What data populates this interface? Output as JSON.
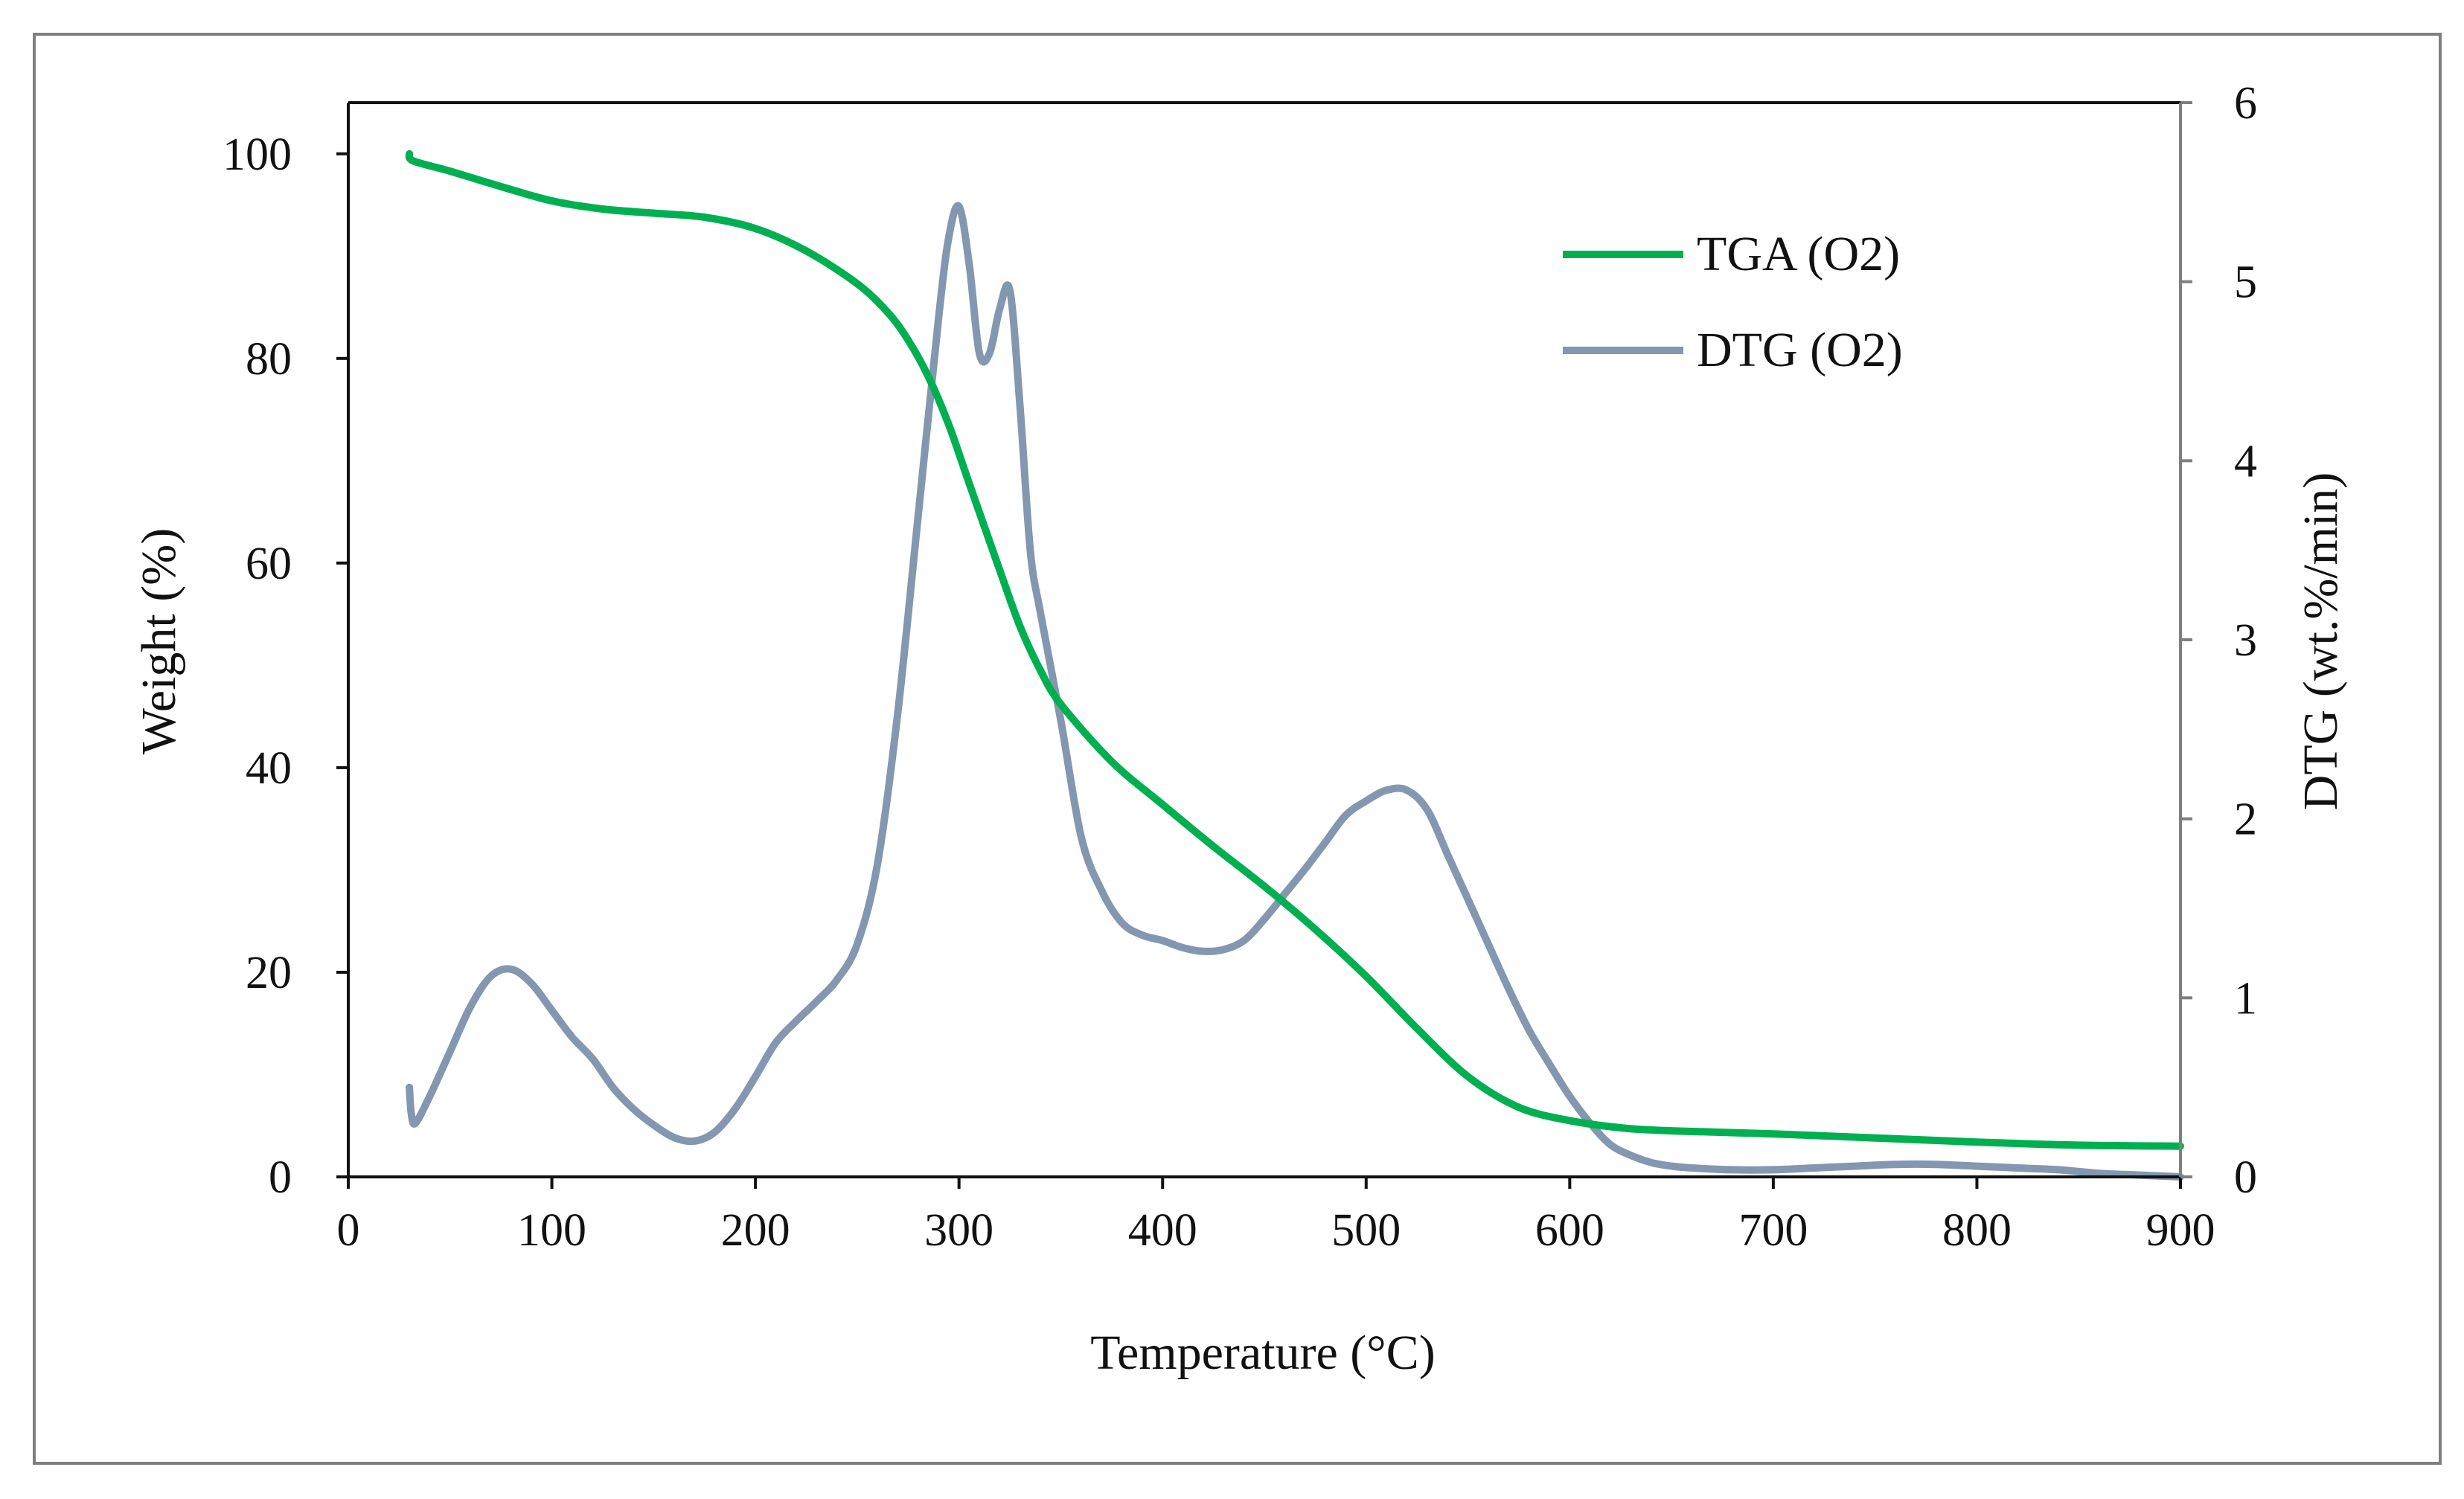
{
  "colors": {
    "tga": "#00b050",
    "dtg": "#8497b0",
    "axis": "#111111",
    "right_axis": "#7f7f7f",
    "frame": "#7f7f7f"
  },
  "chart_data": {
    "type": "line",
    "title": "",
    "xlabel": "Temperature (°C)",
    "ylabel": "Weight (%)",
    "y2label": "DTG (wt.%/min)",
    "xlim": [
      0,
      900
    ],
    "ylim": [
      0,
      105
    ],
    "y2lim": [
      0,
      6
    ],
    "xticks": [
      0,
      100,
      200,
      300,
      400,
      500,
      600,
      700,
      800,
      900
    ],
    "yticks": [
      0,
      20,
      40,
      60,
      80,
      100
    ],
    "y2ticks": [
      0,
      1,
      2,
      3,
      4,
      5,
      6
    ],
    "grid": false,
    "legend_position": "top-right",
    "series": [
      {
        "name": "TGA (O2)",
        "axis": "left",
        "x": [
          30,
          32,
          50,
          75,
          100,
          125,
          150,
          175,
          200,
          225,
          250,
          265,
          275,
          285,
          295,
          305,
          320,
          330,
          340,
          350,
          375,
          400,
          425,
          450,
          475,
          500,
          525,
          550,
          575,
          600,
          625,
          650,
          700,
          750,
          800,
          850,
          900
        ],
        "y": [
          100,
          99.3,
          98.3,
          96.8,
          95.4,
          94.6,
          94.2,
          93.8,
          92.7,
          90.5,
          87.3,
          84.5,
          81.8,
          78.2,
          73.5,
          67.8,
          59.3,
          53.8,
          49.5,
          46.2,
          40.6,
          36.4,
          32.3,
          28.4,
          24.2,
          19.6,
          14.5,
          9.8,
          6.8,
          5.5,
          4.8,
          4.5,
          4.2,
          3.8,
          3.4,
          3.1,
          3.0
        ]
      },
      {
        "name": "DTG (O2)",
        "axis": "right",
        "x": [
          30,
          31,
          33,
          40,
          50,
          60,
          70,
          80,
          90,
          100,
          110,
          120,
          130,
          140,
          150,
          160,
          170,
          180,
          190,
          200,
          210,
          220,
          230,
          240,
          250,
          260,
          270,
          280,
          290,
          295,
          300,
          305,
          310,
          315,
          320,
          325,
          330,
          335,
          340,
          350,
          360,
          370,
          380,
          390,
          400,
          410,
          420,
          430,
          440,
          450,
          460,
          470,
          480,
          490,
          500,
          510,
          520,
          530,
          540,
          550,
          560,
          570,
          580,
          590,
          600,
          610,
          620,
          630,
          640,
          650,
          660,
          680,
          700,
          720,
          740,
          760,
          780,
          800,
          820,
          840,
          860,
          880,
          900
        ],
        "y": [
          0.5,
          0.35,
          0.3,
          0.45,
          0.7,
          0.95,
          1.12,
          1.16,
          1.08,
          0.93,
          0.78,
          0.66,
          0.5,
          0.38,
          0.29,
          0.22,
          0.2,
          0.25,
          0.38,
          0.56,
          0.75,
          0.87,
          0.98,
          1.1,
          1.3,
          1.75,
          2.6,
          3.7,
          4.8,
          5.25,
          5.42,
          5.1,
          4.6,
          4.6,
          4.85,
          4.95,
          4.3,
          3.5,
          3.15,
          2.55,
          1.9,
          1.6,
          1.42,
          1.35,
          1.32,
          1.28,
          1.26,
          1.27,
          1.32,
          1.44,
          1.58,
          1.72,
          1.87,
          2.02,
          2.1,
          2.16,
          2.16,
          2.05,
          1.8,
          1.55,
          1.3,
          1.05,
          0.82,
          0.63,
          0.45,
          0.3,
          0.18,
          0.12,
          0.08,
          0.06,
          0.05,
          0.04,
          0.04,
          0.05,
          0.06,
          0.07,
          0.07,
          0.06,
          0.05,
          0.04,
          0.02,
          0.01,
          0.0
        ]
      }
    ]
  }
}
